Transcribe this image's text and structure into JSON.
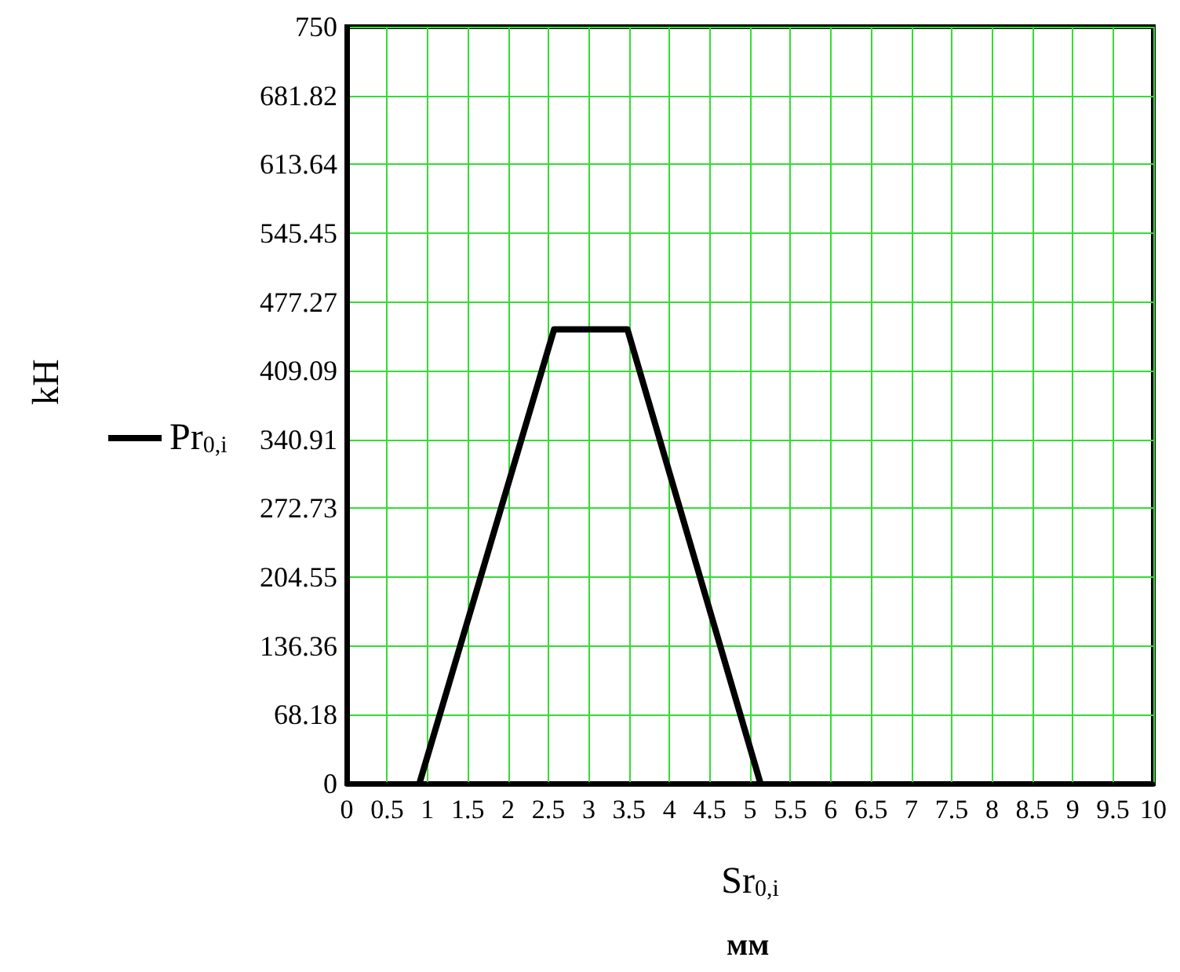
{
  "chart_data": {
    "type": "line",
    "xlabel": "Sr$_{0,i}$",
    "annotations": [
      "kH",
      "мм"
    ],
    "x": [
      0.9,
      2.57,
      3.48,
      5.13
    ],
    "series": [
      {
        "name": "Pr$_{0,i}$",
        "color": "#000000",
        "values": [
          0,
          450,
          450,
          0
        ]
      }
    ],
    "xlim": [
      0,
      10
    ],
    "xticks": [
      0,
      0.5,
      1,
      1.5,
      2,
      2.5,
      3,
      3.5,
      4,
      4.5,
      5,
      5.5,
      6,
      6.5,
      7,
      7.5,
      8,
      8.5,
      9,
      9.5,
      10
    ],
    "ylim": [
      0,
      750
    ],
    "yticks": [
      0,
      68.18,
      136.36,
      204.55,
      272.73,
      340.91,
      409.09,
      477.27,
      545.45,
      613.64,
      681.82,
      750
    ],
    "grid": true,
    "legend": "left",
    "marker": "none",
    "line_style": "solid"
  }
}
